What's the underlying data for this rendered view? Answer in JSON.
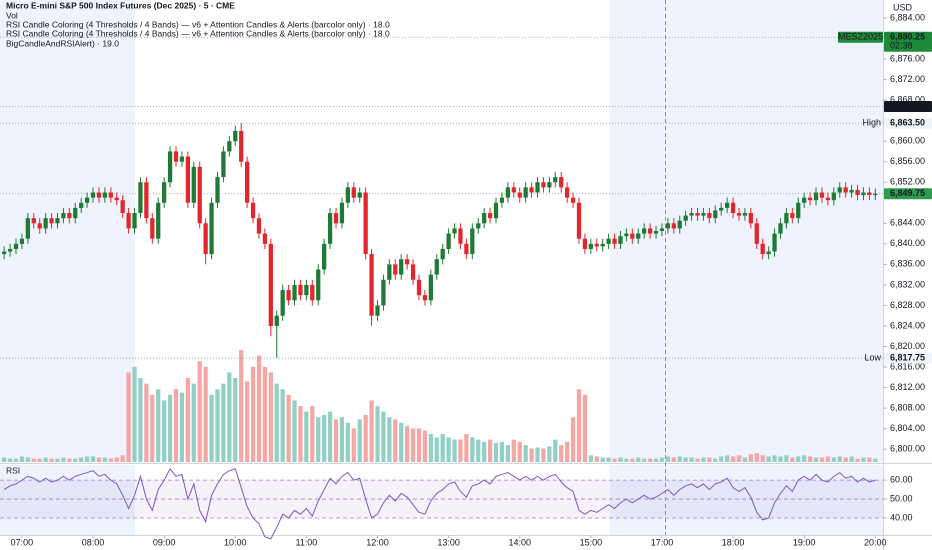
{
  "chart_data": {
    "type": "candlestick",
    "title": "Micro E-mini S&P 500 Index Futures (Dec 2025) · 5 · CME",
    "legend_lines": [
      "Vol",
      "RSI Candle Coloring (4 Thresholds / 4 Bands) — v6 + Attention Candles & Alerts (barcolor only) · 18.0",
      "RSI Candle Coloring (4 Thresholds / 4 Bands) — v6 + Attention Candles & Alerts (barcolor only) · 18.0",
      "BigCandleAndRSIAlert) · 19.0"
    ],
    "currency": "USD",
    "up_color": "#1f7a35",
    "down_color": "#e3262d",
    "open": [
      6838,
      6838.5,
      6839,
      6840,
      6841,
      6845,
      6844,
      6843,
      6845,
      6844,
      6845,
      6846,
      6845,
      6847,
      6848,
      6849,
      6850,
      6849,
      6850,
      6849,
      6848.5,
      6846,
      6843,
      6846,
      6852,
      6845,
      6841,
      6848,
      6852,
      6858,
      6856,
      6857,
      6848,
      6855,
      6844,
      6838,
      6848,
      6853,
      6858,
      6860,
      6862,
      6856,
      6848,
      6845,
      6842,
      6840,
      6824,
      6826,
      6831,
      6829,
      6832,
      6830,
      6832,
      6829,
      6835,
      6840,
      6846,
      6844,
      6848,
      6851,
      6849,
      6850,
      6838,
      6826,
      6828,
      6833,
      6836,
      6834,
      6837,
      6836,
      6833,
      6830,
      6829,
      6834,
      6837,
      6839,
      6842,
      6843,
      6840,
      6838,
      6843,
      6844,
      6846,
      6845,
      6848,
      6849,
      6851,
      6850,
      6849,
      6851,
      6850,
      6852,
      6851,
      6852,
      6853,
      6851,
      6849,
      6848,
      6841,
      6839,
      6840,
      6839.5,
      6840,
      6841,
      6840,
      6841.5,
      6842,
      6841,
      6842,
      6843,
      6842,
      6842.5,
      6843,
      6844,
      6843,
      6844.5,
      6845.5,
      6846,
      6845.5,
      6846,
      6845,
      6846.5,
      6847,
      6848,
      6846,
      6845.5,
      6846,
      6844,
      6840,
      6838,
      6838.5,
      6842,
      6844,
      6846,
      6845,
      6848,
      6849,
      6848.5,
      6850,
      6849,
      6848.5,
      6850,
      6851,
      6850,
      6850.5,
      6849.5,
      6850,
      6849.5
    ],
    "high": [
      6839.5,
      6840,
      6841,
      6842,
      6846,
      6846,
      6845,
      6846,
      6846,
      6846,
      6847,
      6847,
      6848,
      6849,
      6850,
      6851,
      6851,
      6851,
      6851,
      6850,
      6849.5,
      6847,
      6847,
      6853,
      6853,
      6846,
      6849,
      6853,
      6859,
      6859,
      6858,
      6858,
      6856,
      6856,
      6845,
      6849,
      6854,
      6859,
      6861,
      6863,
      6863.5,
      6857,
      6849,
      6846,
      6843,
      6841,
      6827,
      6832,
      6832,
      6833,
      6833,
      6833,
      6833,
      6836,
      6841,
      6847,
      6847,
      6849,
      6852,
      6852,
      6851,
      6851,
      6839,
      6829,
      6834,
      6837,
      6837,
      6838,
      6838,
      6837,
      6834,
      6831,
      6835,
      6838,
      6840,
      6843,
      6844,
      6844,
      6841,
      6844,
      6845,
      6847,
      6847,
      6849,
      6850,
      6852,
      6852,
      6851,
      6852,
      6852,
      6853,
      6853,
      6853,
      6854,
      6854,
      6852,
      6850,
      6849,
      6842,
      6841,
      6841,
      6841,
      6842,
      6842,
      6842.5,
      6843,
      6843,
      6843,
      6844,
      6844,
      6843.5,
      6844,
      6845,
      6845,
      6845.5,
      6846.5,
      6847,
      6847,
      6847,
      6847,
      6847.5,
      6848,
      6849,
      6849,
      6847,
      6847,
      6847,
      6845,
      6841,
      6839.5,
      6843,
      6845,
      6847,
      6847,
      6849,
      6850,
      6850,
      6851,
      6851,
      6850,
      6851,
      6852,
      6852,
      6851.5,
      6851.5,
      6851,
      6851,
      6850.75
    ],
    "low": [
      6837,
      6837.5,
      6838,
      6839,
      6840,
      6843,
      6842,
      6842,
      6843,
      6843,
      6844,
      6844,
      6844,
      6846,
      6847,
      6848,
      6848,
      6848,
      6848,
      6847.5,
      6845,
      6842,
      6842,
      6845,
      6844,
      6840,
      6840,
      6847,
      6851,
      6855,
      6855,
      6847,
      6847,
      6843,
      6836,
      6837,
      6847,
      6852,
      6857,
      6859,
      6855,
      6847,
      6844,
      6841,
      6839,
      6822,
      6817.75,
      6825,
      6828,
      6828,
      6829,
      6829,
      6828,
      6828,
      6834,
      6839,
      6843,
      6843,
      6847,
      6848,
      6848,
      6837,
      6824,
      6825,
      6827,
      6832,
      6833,
      6833,
      6835,
      6832,
      6829,
      6828,
      6828,
      6833,
      6836,
      6838,
      6841,
      6839,
      6837,
      6837,
      6842,
      6843,
      6844,
      6844,
      6847,
      6848,
      6849,
      6848,
      6848,
      6849,
      6849,
      6850,
      6850,
      6851,
      6850,
      6848,
      6847,
      6840,
      6838,
      6838,
      6838.5,
      6838.5,
      6839,
      6839,
      6839,
      6840.5,
      6840,
      6840,
      6841,
      6841,
      6841,
      6841.5,
      6842,
      6842,
      6842,
      6843.5,
      6844.5,
      6844.5,
      6844.5,
      6844,
      6844,
      6845.5,
      6846,
      6845,
      6844.5,
      6844.5,
      6843,
      6839,
      6837,
      6837,
      6837.5,
      6841,
      6843,
      6844,
      6844,
      6847,
      6847.5,
      6847.5,
      6848,
      6847.5,
      6847.5,
      6849,
      6849,
      6849,
      6848.5,
      6848.5,
      6848.5,
      6848.5
    ],
    "close": [
      6838.5,
      6839,
      6840,
      6841,
      6845,
      6844,
      6843,
      6845,
      6844,
      6845,
      6846,
      6845,
      6847,
      6848,
      6849,
      6850,
      6849,
      6850,
      6849,
      6848.5,
      6846,
      6843,
      6846,
      6852,
      6845,
      6841,
      6848,
      6852,
      6858,
      6856,
      6857,
      6848,
      6855,
      6844,
      6838,
      6848,
      6853,
      6858,
      6860,
      6862,
      6856,
      6848,
      6845,
      6842,
      6840,
      6824,
      6826,
      6831,
      6829,
      6832,
      6830,
      6832,
      6829,
      6835,
      6840,
      6846,
      6844,
      6848,
      6851,
      6849,
      6850,
      6838,
      6826,
      6828,
      6833,
      6836,
      6834,
      6837,
      6836,
      6833,
      6830,
      6829,
      6834,
      6837,
      6839,
      6842,
      6843,
      6840,
      6838,
      6843,
      6844,
      6846,
      6845,
      6848,
      6849,
      6851,
      6850,
      6849,
      6851,
      6850,
      6852,
      6851,
      6852,
      6853,
      6851,
      6849,
      6848,
      6841,
      6839,
      6840,
      6839.5,
      6840,
      6841,
      6840,
      6841.5,
      6842,
      6841,
      6842,
      6843,
      6842,
      6842.5,
      6843,
      6844,
      6843,
      6844.5,
      6845.5,
      6846,
      6845.5,
      6846,
      6845,
      6846.5,
      6847,
      6848,
      6846,
      6845.5,
      6846,
      6844,
      6840,
      6838,
      6838.5,
      6842,
      6844,
      6846,
      6845,
      6848,
      6849,
      6848.5,
      6850,
      6849,
      6848.5,
      6850,
      6851,
      6850,
      6850.5,
      6849.5,
      6850,
      6849.5,
      6849.75
    ],
    "ylim": [
      6797.5,
      6887.5
    ],
    "yticks": [
      {
        "value": 6884,
        "label": "6,884.00"
      },
      {
        "value": 6876,
        "label": "6,876.00"
      },
      {
        "value": 6872,
        "label": "6,872.00"
      },
      {
        "value": 6868,
        "label": "6,868.00"
      },
      {
        "value": 6860,
        "label": "6,860.00"
      },
      {
        "value": 6856,
        "label": "6,856.00"
      },
      {
        "value": 6852,
        "label": "6,852.00"
      },
      {
        "value": 6844,
        "label": "6,844.00"
      },
      {
        "value": 6840,
        "label": "6,840.00"
      },
      {
        "value": 6836,
        "label": "6,836.00"
      },
      {
        "value": 6832,
        "label": "6,832.00"
      },
      {
        "value": 6828,
        "label": "6,828.00"
      },
      {
        "value": 6824,
        "label": "6,824.00"
      },
      {
        "value": 6820,
        "label": "6,820.00"
      },
      {
        "value": 6816,
        "label": "6,816.00"
      },
      {
        "value": 6812,
        "label": "6,812.00"
      },
      {
        "value": 6808,
        "label": "6,808.00"
      },
      {
        "value": 6804,
        "label": "6,804.00"
      },
      {
        "value": 6800,
        "label": "6,800.00"
      }
    ],
    "xlim": [
      -0.7,
      148.3
    ],
    "xticks": [
      {
        "value": 3,
        "label": "07:00"
      },
      {
        "value": 15,
        "label": "08:00"
      },
      {
        "value": 27,
        "label": "09:00"
      },
      {
        "value": 39,
        "label": "10:00"
      },
      {
        "value": 51,
        "label": "11:00"
      },
      {
        "value": 63,
        "label": "12:00"
      },
      {
        "value": 75,
        "label": "13:00"
      },
      {
        "value": 87,
        "label": "14:00"
      },
      {
        "value": 99,
        "label": "15:00"
      },
      {
        "value": 111,
        "label": "17:00"
      },
      {
        "value": 123,
        "label": "18:00"
      },
      {
        "value": 135,
        "label": "19:00"
      },
      {
        "value": 147,
        "label": "20:00"
      }
    ],
    "price_tags": [
      {
        "value": 6880.25,
        "label": "6,880.25",
        "name": "MESZ2025",
        "countdown": "02:38",
        "color": "#1e8a3a"
      },
      {
        "value": 6866.75,
        "label": "6,866.75",
        "color": "#131722"
      },
      {
        "value": 6863.5,
        "label": "6,863.50",
        "name": "High",
        "color": "#f0f3fa"
      },
      {
        "value": 6817.75,
        "label": "6,817.75",
        "name": "Low",
        "color": "#f0f3fa"
      },
      {
        "value": 6849.75,
        "label": "6,849.75",
        "color": "#2e9a4e"
      }
    ],
    "volume": {
      "name": "Vol",
      "up_color": "#92d0c6",
      "down_color": "#f5a7a6",
      "ylim": [
        0,
        100
      ],
      "values": [
        4,
        3,
        3,
        5,
        4,
        3,
        3,
        4,
        3,
        3,
        4,
        3,
        3,
        4,
        5,
        5,
        4,
        4,
        3,
        4,
        6,
        80,
        85,
        75,
        70,
        60,
        65,
        55,
        60,
        65,
        62,
        75,
        70,
        90,
        85,
        60,
        65,
        70,
        80,
        75,
        100,
        72,
        85,
        95,
        85,
        80,
        70,
        65,
        60,
        55,
        50,
        45,
        50,
        40,
        42,
        45,
        38,
        40,
        35,
        30,
        38,
        42,
        55,
        50,
        45,
        40,
        38,
        35,
        32,
        30,
        30,
        28,
        25,
        22,
        25,
        22,
        20,
        20,
        25,
        22,
        20,
        18,
        20,
        17,
        18,
        15,
        20,
        18,
        15,
        12,
        13,
        12,
        14,
        20,
        15,
        18,
        40,
        65,
        60,
        6,
        5,
        4,
        4,
        3,
        4,
        3,
        3,
        4,
        3,
        3,
        3,
        4,
        5,
        4,
        5,
        4,
        4,
        3,
        4,
        4,
        3,
        5,
        6,
        5,
        6,
        4,
        7,
        8,
        6,
        5,
        6,
        5,
        6,
        4,
        5,
        6,
        5,
        4,
        4,
        5,
        4,
        5,
        4,
        5,
        3,
        4,
        4,
        3
      ]
    },
    "rsi": {
      "name": "RSI",
      "color": "#7e57c2",
      "ylim": [
        31,
        68
      ],
      "yticks": [
        {
          "value": 60,
          "label": "60.00"
        },
        {
          "value": 50,
          "label": "50.00"
        },
        {
          "value": 40,
          "label": "40.00"
        }
      ],
      "bands": [
        60,
        50,
        40
      ],
      "values": [
        55,
        57,
        58,
        60,
        62,
        61,
        59,
        61,
        59,
        60,
        62,
        60,
        62,
        63,
        64,
        65,
        62,
        63,
        60,
        58,
        52,
        45,
        52,
        62,
        50,
        44,
        55,
        60,
        66,
        62,
        63,
        50,
        58,
        44,
        38,
        52,
        58,
        63,
        65,
        66,
        56,
        46,
        40,
        37,
        30,
        29,
        35,
        42,
        40,
        44,
        42,
        45,
        41,
        49,
        55,
        61,
        58,
        62,
        64,
        60,
        61,
        50,
        40,
        42,
        48,
        52,
        49,
        53,
        51,
        47,
        43,
        42,
        49,
        53,
        55,
        58,
        59,
        54,
        51,
        57,
        58,
        60,
        58,
        62,
        63,
        64,
        62,
        60,
        62,
        60,
        62,
        60,
        62,
        63,
        59,
        56,
        54,
        44,
        42,
        44,
        43,
        45,
        47,
        45,
        48,
        50,
        48,
        50,
        52,
        50,
        51,
        53,
        55,
        52,
        55,
        57,
        58,
        56,
        58,
        55,
        58,
        59,
        61,
        56,
        54,
        56,
        51,
        43,
        39,
        40,
        48,
        53,
        57,
        54,
        60,
        62,
        60,
        63,
        60,
        59,
        62,
        64,
        61,
        62,
        59,
        61,
        59,
        60
      ]
    }
  }
}
